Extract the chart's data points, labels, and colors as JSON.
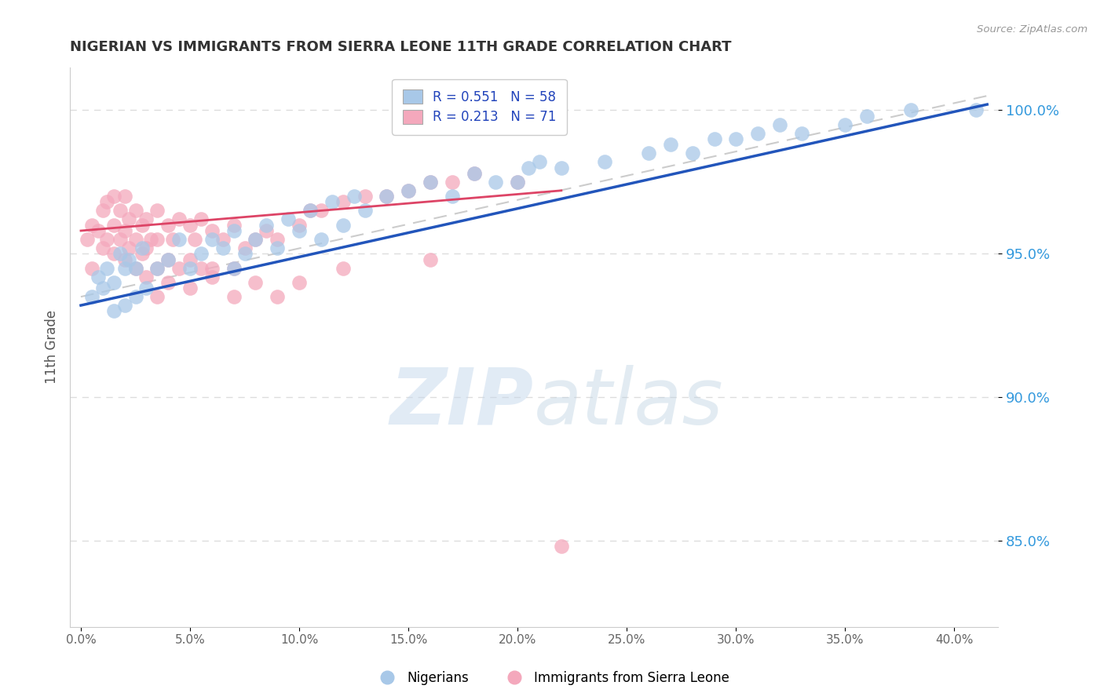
{
  "title": "NIGERIAN VS IMMIGRANTS FROM SIERRA LEONE 11TH GRADE CORRELATION CHART",
  "source": "Source: ZipAtlas.com",
  "xlabel_ticks": [
    0.0,
    5.0,
    10.0,
    15.0,
    20.0,
    25.0,
    30.0,
    35.0,
    40.0
  ],
  "ylabel_ticks": [
    85.0,
    90.0,
    95.0,
    100.0
  ],
  "xlim": [
    -0.5,
    42.0
  ],
  "ylim": [
    82.0,
    101.5
  ],
  "ylabel": "11th Grade",
  "blue_R": 0.551,
  "blue_N": 58,
  "pink_R": 0.213,
  "pink_N": 71,
  "blue_color": "#a8c8e8",
  "pink_color": "#f4a8bc",
  "blue_line_color": "#2255bb",
  "pink_line_color": "#dd4466",
  "ref_line_color": "#cccccc",
  "legend_label_blue": "Nigerians",
  "legend_label_pink": "Immigrants from Sierra Leone",
  "title_color": "#333333",
  "source_color": "#999999",
  "watermark_zip": "ZIP",
  "watermark_atlas": "atlas",
  "blue_scatter_x": [
    0.5,
    0.8,
    1.0,
    1.2,
    1.5,
    1.5,
    1.8,
    2.0,
    2.0,
    2.2,
    2.5,
    2.5,
    2.8,
    3.0,
    3.5,
    4.0,
    4.5,
    5.0,
    5.5,
    6.0,
    6.5,
    7.0,
    7.0,
    7.5,
    8.0,
    8.5,
    9.0,
    9.5,
    10.0,
    10.5,
    11.0,
    11.5,
    12.0,
    12.5,
    13.0,
    14.0,
    15.0,
    16.0,
    17.0,
    18.0,
    19.0,
    20.0,
    20.5,
    21.0,
    22.0,
    24.0,
    26.0,
    27.0,
    28.0,
    29.0,
    30.0,
    31.0,
    32.0,
    33.0,
    35.0,
    36.0,
    38.0,
    41.0
  ],
  "blue_scatter_y": [
    93.5,
    94.2,
    93.8,
    94.5,
    94.0,
    93.0,
    95.0,
    94.5,
    93.2,
    94.8,
    93.5,
    94.5,
    95.2,
    93.8,
    94.5,
    94.8,
    95.5,
    94.5,
    95.0,
    95.5,
    95.2,
    94.5,
    95.8,
    95.0,
    95.5,
    96.0,
    95.2,
    96.2,
    95.8,
    96.5,
    95.5,
    96.8,
    96.0,
    97.0,
    96.5,
    97.0,
    97.2,
    97.5,
    97.0,
    97.8,
    97.5,
    97.5,
    98.0,
    98.2,
    98.0,
    98.2,
    98.5,
    98.8,
    98.5,
    99.0,
    99.0,
    99.2,
    99.5,
    99.2,
    99.5,
    99.8,
    100.0,
    100.0
  ],
  "pink_scatter_x": [
    0.3,
    0.5,
    0.5,
    0.8,
    1.0,
    1.0,
    1.2,
    1.2,
    1.5,
    1.5,
    1.5,
    1.8,
    1.8,
    2.0,
    2.0,
    2.0,
    2.2,
    2.2,
    2.5,
    2.5,
    2.5,
    2.8,
    2.8,
    3.0,
    3.0,
    3.0,
    3.2,
    3.5,
    3.5,
    3.5,
    4.0,
    4.0,
    4.2,
    4.5,
    4.5,
    5.0,
    5.0,
    5.2,
    5.5,
    5.5,
    6.0,
    6.0,
    6.5,
    7.0,
    7.0,
    7.5,
    8.0,
    8.5,
    9.0,
    10.0,
    10.5,
    11.0,
    12.0,
    13.0,
    14.0,
    15.0,
    16.0,
    17.0,
    18.0,
    20.0,
    3.5,
    4.0,
    5.0,
    6.0,
    7.0,
    8.0,
    9.0,
    10.0,
    12.0,
    16.0,
    22.0
  ],
  "pink_scatter_y": [
    95.5,
    96.0,
    94.5,
    95.8,
    95.2,
    96.5,
    95.5,
    96.8,
    95.0,
    96.0,
    97.0,
    95.5,
    96.5,
    94.8,
    95.8,
    97.0,
    95.2,
    96.2,
    94.5,
    95.5,
    96.5,
    95.0,
    96.0,
    94.2,
    95.2,
    96.2,
    95.5,
    94.5,
    95.5,
    96.5,
    94.8,
    96.0,
    95.5,
    94.5,
    96.2,
    94.8,
    96.0,
    95.5,
    94.5,
    96.2,
    94.5,
    95.8,
    95.5,
    94.5,
    96.0,
    95.2,
    95.5,
    95.8,
    95.5,
    96.0,
    96.5,
    96.5,
    96.8,
    97.0,
    97.0,
    97.2,
    97.5,
    97.5,
    97.8,
    97.5,
    93.5,
    94.0,
    93.8,
    94.2,
    93.5,
    94.0,
    93.5,
    94.0,
    94.5,
    94.8,
    84.8
  ],
  "blue_trend_x0": 0.0,
  "blue_trend_y0": 93.2,
  "blue_trend_x1": 41.5,
  "blue_trend_y1": 100.2,
  "pink_trend_x0": 0.0,
  "pink_trend_y0": 95.8,
  "pink_trend_x1": 22.0,
  "pink_trend_y1": 97.2,
  "ref_line_x0": 0.0,
  "ref_line_y0": 93.5,
  "ref_line_x1": 41.5,
  "ref_line_y1": 100.5
}
